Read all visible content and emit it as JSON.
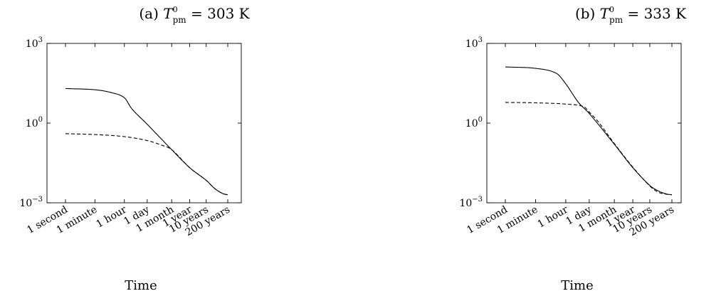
{
  "chart_data": [
    {
      "type": "line",
      "title": "(a) T_pm^0 = 303 K",
      "title_parts": {
        "prefix": "(a) ",
        "symbol": "T",
        "sup": "0",
        "sub": "pm",
        "suffix": " = 303 K"
      },
      "xlabel": "Time",
      "ylabel": "",
      "yscale": "log",
      "ylim": [
        0.001,
        1000
      ],
      "yticks": [
        {
          "value": 0.001,
          "base": "10",
          "exp": "−3"
        },
        {
          "value": 1,
          "base": "10",
          "exp": "0"
        },
        {
          "value": 1000,
          "base": "10",
          "exp": "3"
        }
      ],
      "xscale": "log",
      "xlim_seconds": [
        1,
        6311390400
      ],
      "xtick_labels": [
        "1 second",
        "1 minute",
        "1 hour",
        "1 day",
        "1 month",
        "1 year",
        "10 years",
        "200 years"
      ],
      "xtick_seconds": [
        1,
        60,
        3600,
        86400,
        2592000,
        31557600,
        315576000,
        6311390400
      ],
      "grid": false,
      "series": [
        {
          "style": "solid",
          "x_seconds": [
            1,
            60,
            600,
            3600,
            10000,
            86400,
            2592000,
            31557600,
            315576000,
            1000000000,
            3000000000,
            6311390400
          ],
          "y": [
            20,
            18,
            14,
            9,
            3.5,
            0.9,
            0.1,
            0.021,
            0.007,
            0.0035,
            0.00225,
            0.002
          ]
        },
        {
          "style": "dashed",
          "x_seconds": [
            1,
            60,
            3600,
            86400,
            600000,
            2592000,
            31557600,
            315576000,
            1000000000,
            3000000000,
            6311390400
          ],
          "y": [
            0.4,
            0.37,
            0.31,
            0.22,
            0.15,
            0.1,
            0.021,
            0.007,
            0.0035,
            0.00225,
            0.002
          ]
        }
      ]
    },
    {
      "type": "line",
      "title": "(b) T_pm^0 = 333 K",
      "title_parts": {
        "prefix": "(b) ",
        "symbol": "T",
        "sup": "0",
        "sub": "pm",
        "suffix": " = 333 K"
      },
      "xlabel": "Time",
      "ylabel": "",
      "yscale": "log",
      "ylim": [
        0.001,
        1000
      ],
      "yticks": [
        {
          "value": 0.001,
          "base": "10",
          "exp": "−3"
        },
        {
          "value": 1,
          "base": "10",
          "exp": "0"
        },
        {
          "value": 1000,
          "base": "10",
          "exp": "3"
        }
      ],
      "xscale": "log",
      "xlim_seconds": [
        1,
        6311390400
      ],
      "xtick_labels": [
        "1 second",
        "1 minute",
        "1 hour",
        "1 day",
        "1 month",
        "1 year",
        "10 years",
        "200 years"
      ],
      "xtick_seconds": [
        1,
        60,
        3600,
        86400,
        2592000,
        31557600,
        315576000,
        6311390400
      ],
      "grid": false,
      "series": [
        {
          "style": "solid",
          "x_seconds": [
            1,
            60,
            1000,
            3600,
            20000,
            86400,
            2592000,
            31557600,
            315576000,
            1000000000,
            3000000000,
            6311390400
          ],
          "y": [
            130,
            115,
            75,
            30,
            6,
            2.3,
            0.16,
            0.021,
            0.0045,
            0.0028,
            0.00215,
            0.002
          ]
        },
        {
          "style": "dashed",
          "x_seconds": [
            1,
            60,
            3600,
            40000,
            86400,
            300000,
            2592000,
            31557600,
            315576000,
            1000000000,
            3000000000,
            6311390400
          ],
          "y": [
            6,
            5.8,
            5.2,
            4.2,
            2.6,
            1.1,
            0.17,
            0.022,
            0.0043,
            0.0025,
            0.0021,
            0.002
          ]
        }
      ]
    }
  ]
}
